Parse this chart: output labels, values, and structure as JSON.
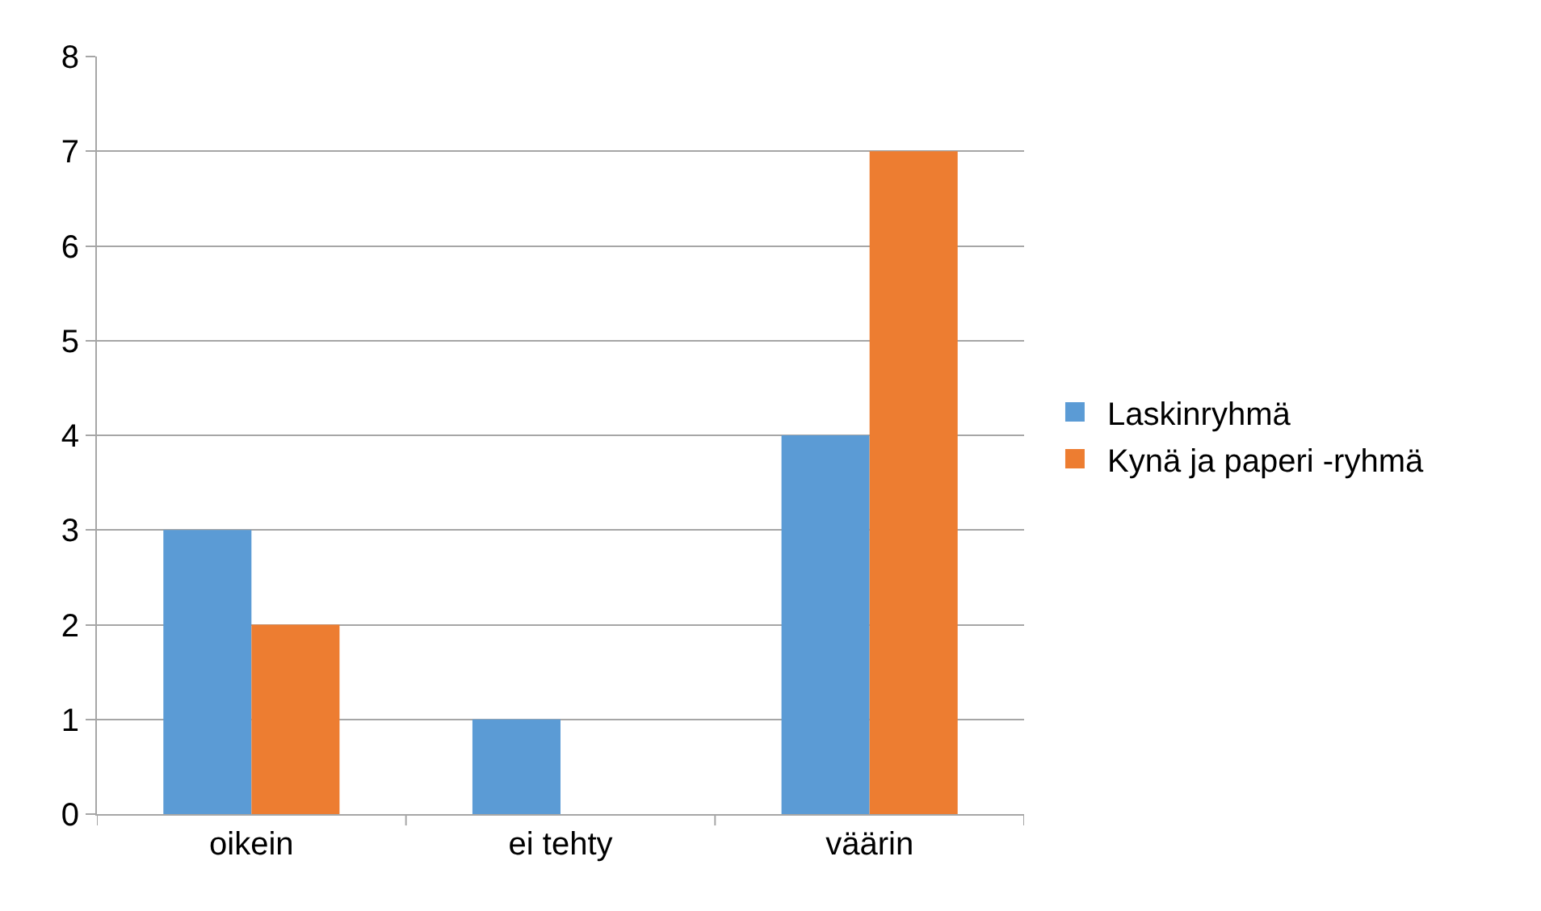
{
  "chart_data": {
    "type": "bar",
    "categories": [
      "oikein",
      "ei tehty",
      "väärin"
    ],
    "series": [
      {
        "name": "Laskinryhmä",
        "color": "#5b9bd5",
        "values": [
          3,
          1,
          4
        ]
      },
      {
        "name": "Kynä ja paperi -ryhmä",
        "color": "#ed7d31",
        "values": [
          2,
          0,
          7
        ]
      }
    ],
    "ylim": [
      0,
      8
    ],
    "yticks": [
      0,
      1,
      2,
      3,
      4,
      5,
      6,
      7,
      8
    ],
    "grid": "y",
    "legend": "right"
  }
}
